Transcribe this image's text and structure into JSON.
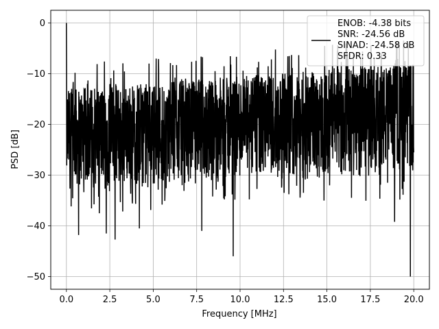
{
  "chart_data": {
    "type": "line",
    "title": "",
    "xlabel": "Frequency [MHz]",
    "ylabel": "PSD [dB]",
    "xlim": [
      -0.9,
      20.9
    ],
    "ylim": [
      -52.5,
      2.5
    ],
    "xticks": [
      0.0,
      2.5,
      5.0,
      7.5,
      10.0,
      12.5,
      15.0,
      17.5,
      20.0
    ],
    "xtick_labels": [
      "0.0",
      "2.5",
      "5.0",
      "7.5",
      "10.0",
      "12.5",
      "15.0",
      "17.5",
      "20.0"
    ],
    "yticks": [
      0,
      -10,
      -20,
      -30,
      -40,
      -50
    ],
    "ytick_labels": [
      "0",
      "−10",
      "−20",
      "−30",
      "−40",
      "−50"
    ],
    "grid": true,
    "legend_position": "top-right",
    "line_color": "#000000",
    "series": [
      {
        "legend_lines": [
          "ENOB: -4.38 bits",
          "SNR: -24.56 dB",
          "SINAD: -24.58 dB",
          "SFDR: 0.33"
        ],
        "x_range": [
          0,
          20
        ],
        "point_count": 2048,
        "peak": {
          "x": 0.0,
          "y": 0.0
        },
        "approx_envelope": {
          "upper_start": -13,
          "upper_end": -8,
          "lower_start": -33,
          "lower_end": -30
        },
        "notable_dips": [
          {
            "x": 0.7,
            "y": -41.8
          },
          {
            "x": 2.3,
            "y": -41.5
          },
          {
            "x": 2.8,
            "y": -42.7
          },
          {
            "x": 4.2,
            "y": -40.5
          },
          {
            "x": 7.8,
            "y": -41.0
          },
          {
            "x": 9.6,
            "y": -46.0
          },
          {
            "x": 18.9,
            "y": -39.2
          },
          {
            "x": 19.8,
            "y": -50.0
          }
        ]
      }
    ]
  }
}
